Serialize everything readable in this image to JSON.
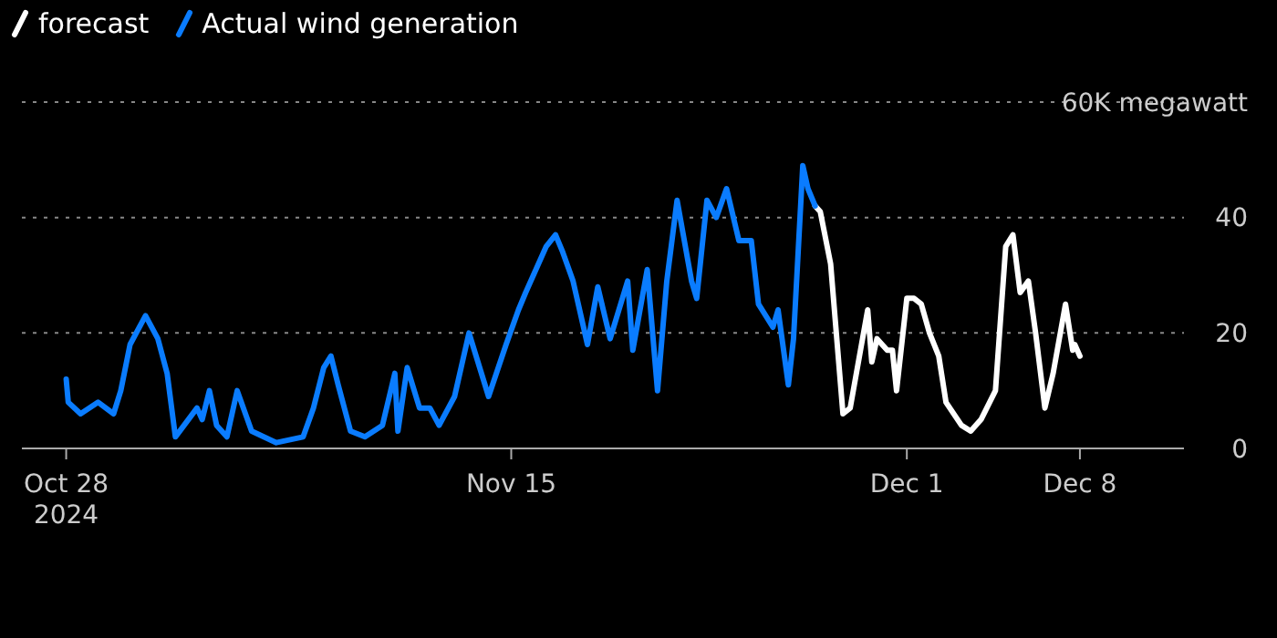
{
  "chart_data": {
    "type": "line",
    "legend": "top left",
    "grid": "y",
    "line_style": "solid",
    "marker": "none",
    "xlim": [
      "2024-10-26T05:00",
      "2024-12-12T05:00"
    ],
    "xticks": [
      {
        "value": "2024-10-28",
        "label": "Oct 28\n2024"
      },
      {
        "value": "2024-11-15",
        "label": "Nov 15"
      },
      {
        "value": "2024-12-01",
        "label": "Dec 1"
      },
      {
        "value": "2024-12-08",
        "label": "Dec 8"
      }
    ],
    "ylim": [
      0,
      60
    ],
    "yticks": [
      0,
      20,
      40,
      {
        "value": 60,
        "label": "60K megawatt"
      }
    ],
    "series": [
      {
        "name": "forecast",
        "color": "#ffffff",
        "x": [
          "2024-11-27T07:00",
          "2024-11-27T12:00",
          "2024-11-27T22:00",
          "2024-11-28T10:00",
          "2024-11-28T17:00",
          "2024-11-29T10:00",
          "2024-11-29T14:00",
          "2024-11-29T19:00",
          "2024-11-30T05:00",
          "2024-11-30T10:00",
          "2024-11-30T14:00",
          "2024-12-01T00:00",
          "2024-12-01T07:00",
          "2024-12-01T14:00",
          "2024-12-01T22:00",
          "2024-12-02T07:00",
          "2024-12-02T14:00",
          "2024-12-03T05:00",
          "2024-12-03T14:00",
          "2024-12-04T00:00",
          "2024-12-04T14:00",
          "2024-12-05T00:00",
          "2024-12-05T07:00",
          "2024-12-05T14:00",
          "2024-12-05T22:00",
          "2024-12-06T05:00",
          "2024-12-06T14:00",
          "2024-12-06T22:00",
          "2024-12-07T10:00",
          "2024-12-07T17:00",
          "2024-12-07T19:00",
          "2024-12-08T00:00"
        ],
        "values": [
          42,
          41,
          32,
          6,
          7,
          24,
          15,
          19,
          17,
          17,
          10,
          26,
          26,
          25,
          20,
          16,
          8,
          4,
          3,
          5,
          10,
          35,
          37,
          27,
          29,
          20,
          7,
          13,
          25,
          17,
          18,
          16
        ]
      },
      {
        "name": "Actual wind generation",
        "color": "#0a7cff",
        "x": [
          "2024-10-28T00:00",
          "2024-10-28T02:00",
          "2024-10-28T14:00",
          "2024-10-29T07:00",
          "2024-10-29T22:00",
          "2024-10-30T05:00",
          "2024-10-30T14:00",
          "2024-10-31T05:00",
          "2024-10-31T17:00",
          "2024-11-01T02:00",
          "2024-11-01T10:00",
          "2024-11-02T07:00",
          "2024-11-02T12:00",
          "2024-11-02T19:00",
          "2024-11-03T02:00",
          "2024-11-03T12:00",
          "2024-11-03T22:00",
          "2024-11-04T12:00",
          "2024-11-05T12:00",
          "2024-11-06T14:00",
          "2024-11-07T00:00",
          "2024-11-07T10:00",
          "2024-11-07T17:00",
          "2024-11-08T00:00",
          "2024-11-08T12:00",
          "2024-11-09T02:00",
          "2024-11-09T19:00",
          "2024-11-10T07:00",
          "2024-11-10T10:00",
          "2024-11-10T19:00",
          "2024-11-11T07:00",
          "2024-11-11T17:00",
          "2024-11-12T02:00",
          "2024-11-12T17:00",
          "2024-11-13T07:00",
          "2024-11-14T02:00",
          "2024-11-14T19:00",
          "2024-11-15T07:00",
          "2024-11-15T14:00",
          "2024-11-16T10:00",
          "2024-11-16T19:00",
          "2024-11-17T02:00",
          "2024-11-17T12:00",
          "2024-11-18T02:00",
          "2024-11-18T12:00",
          "2024-11-19T00:00",
          "2024-11-19T17:00",
          "2024-11-19T22:00",
          "2024-11-20T12:00",
          "2024-11-20T22:00",
          "2024-11-21T07:00",
          "2024-11-21T17:00",
          "2024-11-22T07:00",
          "2024-11-22T12:00",
          "2024-11-22T22:00",
          "2024-11-23T07:00",
          "2024-11-23T17:00",
          "2024-11-24T05:00",
          "2024-11-24T17:00",
          "2024-11-25T00:00",
          "2024-11-25T14:00",
          "2024-11-25T19:00",
          "2024-11-26T05:00",
          "2024-11-26T10:00",
          "2024-11-26T19:00",
          "2024-11-27T00:00",
          "2024-11-27T07:00"
        ],
        "values": [
          12,
          8,
          6,
          8,
          6,
          10,
          18,
          23,
          19,
          13,
          2,
          7,
          5,
          10,
          4,
          2,
          10,
          3,
          1,
          2,
          7,
          14,
          16,
          11,
          3,
          2,
          4,
          13,
          3,
          14,
          7,
          7,
          4,
          9,
          20,
          9,
          18,
          24,
          27,
          35,
          37,
          34,
          29,
          18,
          28,
          19,
          29,
          17,
          31,
          10,
          29,
          43,
          29,
          26,
          43,
          40,
          45,
          36,
          36,
          25,
          21,
          24,
          11,
          19,
          49,
          45,
          42
        ]
      }
    ]
  }
}
